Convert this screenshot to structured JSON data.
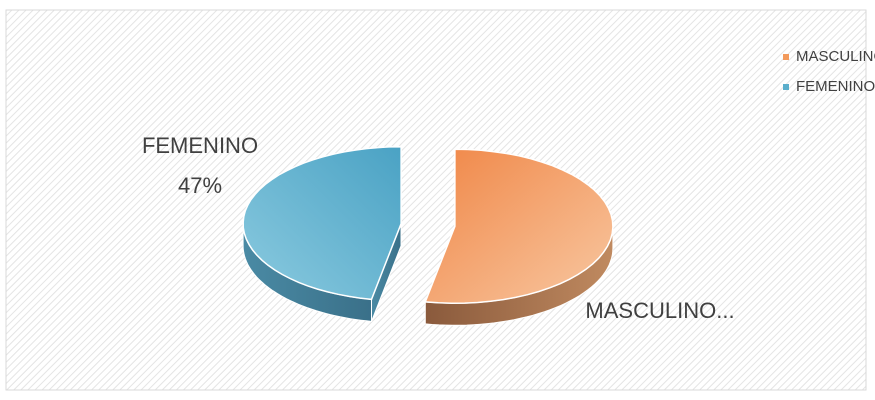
{
  "chart_data": {
    "type": "pie",
    "style": "3d-exploded",
    "categories": [
      "MASCULINO",
      "FEMENINO"
    ],
    "values": [
      53,
      47
    ],
    "value_labels": [
      null,
      "47%"
    ],
    "data_labels": [
      "MASCULINO...",
      "FEMENINO"
    ],
    "colors": [
      "#f39a5c",
      "#5aaecb"
    ],
    "legend": "top-right"
  }
}
